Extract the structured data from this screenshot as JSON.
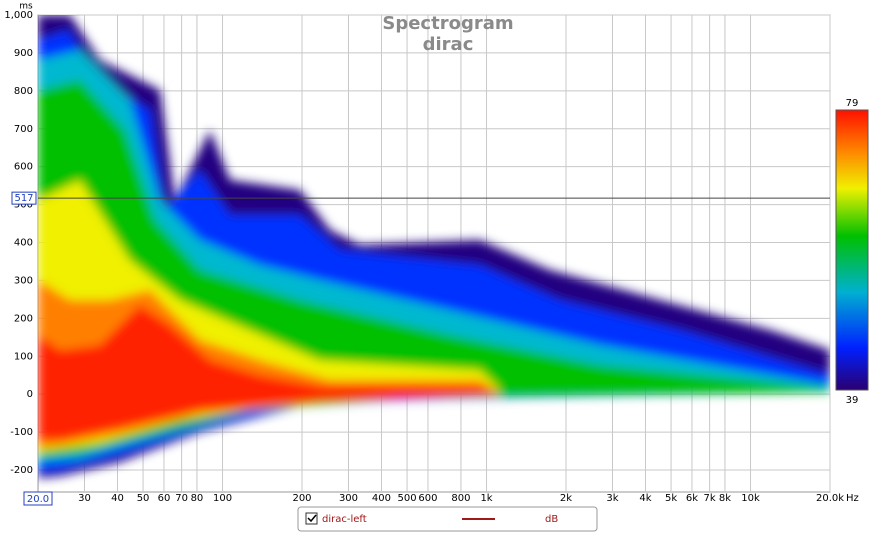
{
  "chart_data": {
    "type": "spectrogram",
    "title": "Spectrogram",
    "subtitle": "dirac",
    "y_unit": "ms",
    "x_unit": "Hz",
    "x_log": true,
    "grid": true,
    "xlim": [
      20,
      20000
    ],
    "ylim": [
      -258,
      1000
    ],
    "xticks": [
      30,
      40,
      50,
      60,
      70,
      80,
      100,
      200,
      300,
      400,
      500,
      600,
      800,
      {
        "value": 1000,
        "label": "1k"
      },
      {
        "value": 2000,
        "label": "2k"
      },
      {
        "value": 3000,
        "label": "3k"
      },
      {
        "value": 4000,
        "label": "4k"
      },
      {
        "value": 5000,
        "label": "5k"
      },
      {
        "value": 6000,
        "label": "6k"
      },
      {
        "value": 7000,
        "label": "7k"
      },
      {
        "value": 8000,
        "label": "8k"
      },
      {
        "value": 10000,
        "label": "10k"
      },
      {
        "value": 20000,
        "label": "20.0k"
      }
    ],
    "yticks": [
      -200,
      -100,
      0,
      100,
      200,
      300,
      400,
      500,
      600,
      700,
      800,
      900,
      {
        "value": 1000,
        "label": "1,000"
      }
    ],
    "cursor": {
      "x": {
        "value": 20,
        "label": "20.0"
      },
      "y": 517
    },
    "zlim": [
      39,
      79
    ],
    "series": [
      {
        "name": "dirac-left",
        "color": "#a01818",
        "unit": "dB"
      }
    ]
  }
}
